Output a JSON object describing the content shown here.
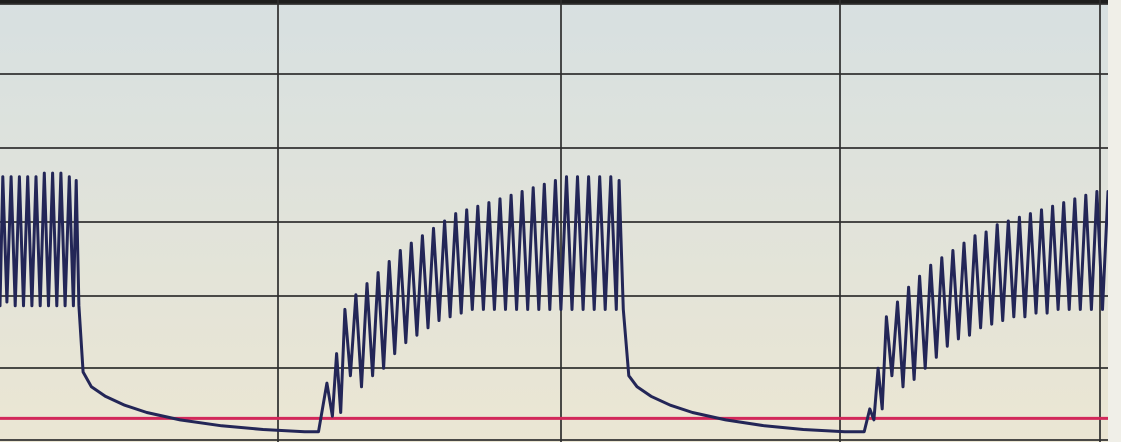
{
  "chart_data": {
    "type": "line",
    "title": "",
    "xlabel": "",
    "ylabel": "",
    "grid": true,
    "x_divisions": 4,
    "y_divisions": 6,
    "ylim": [
      0,
      6
    ],
    "xlim": [
      0,
      4
    ],
    "baseline": {
      "value": 0.32
    },
    "series": [
      {
        "values": [
          [
            0.0,
            1.85
          ],
          [
            0.01,
            3.6
          ],
          [
            0.025,
            1.9
          ],
          [
            0.04,
            3.6
          ],
          [
            0.055,
            1.85
          ],
          [
            0.07,
            3.6
          ],
          [
            0.085,
            1.85
          ],
          [
            0.1,
            3.6
          ],
          [
            0.115,
            1.85
          ],
          [
            0.13,
            3.6
          ],
          [
            0.145,
            1.85
          ],
          [
            0.16,
            3.65
          ],
          [
            0.175,
            1.85
          ],
          [
            0.19,
            3.65
          ],
          [
            0.205,
            1.85
          ],
          [
            0.22,
            3.65
          ],
          [
            0.235,
            1.85
          ],
          [
            0.25,
            3.6
          ],
          [
            0.265,
            1.85
          ],
          [
            0.275,
            3.55
          ],
          [
            0.285,
            1.85
          ],
          [
            0.3,
            0.95
          ],
          [
            0.33,
            0.75
          ],
          [
            0.38,
            0.62
          ],
          [
            0.45,
            0.5
          ],
          [
            0.53,
            0.4
          ],
          [
            0.65,
            0.3
          ],
          [
            0.8,
            0.22
          ],
          [
            0.95,
            0.17
          ],
          [
            1.1,
            0.14
          ],
          [
            1.15,
            0.14
          ],
          [
            1.18,
            0.8
          ],
          [
            1.2,
            0.35
          ],
          [
            1.215,
            1.2
          ],
          [
            1.23,
            0.4
          ],
          [
            1.245,
            1.8
          ],
          [
            1.265,
            0.9
          ],
          [
            1.285,
            2.0
          ],
          [
            1.305,
            0.75
          ],
          [
            1.325,
            2.15
          ],
          [
            1.345,
            0.9
          ],
          [
            1.365,
            2.3
          ],
          [
            1.385,
            1.0
          ],
          [
            1.405,
            2.45
          ],
          [
            1.425,
            1.2
          ],
          [
            1.445,
            2.6
          ],
          [
            1.465,
            1.35
          ],
          [
            1.485,
            2.7
          ],
          [
            1.505,
            1.45
          ],
          [
            1.525,
            2.8
          ],
          [
            1.545,
            1.55
          ],
          [
            1.565,
            2.9
          ],
          [
            1.585,
            1.65
          ],
          [
            1.605,
            3.0
          ],
          [
            1.625,
            1.7
          ],
          [
            1.645,
            3.1
          ],
          [
            1.665,
            1.75
          ],
          [
            1.685,
            3.15
          ],
          [
            1.705,
            1.8
          ],
          [
            1.725,
            3.2
          ],
          [
            1.745,
            1.8
          ],
          [
            1.765,
            3.25
          ],
          [
            1.785,
            1.8
          ],
          [
            1.805,
            3.3
          ],
          [
            1.825,
            1.8
          ],
          [
            1.845,
            3.35
          ],
          [
            1.865,
            1.8
          ],
          [
            1.885,
            3.4
          ],
          [
            1.905,
            1.8
          ],
          [
            1.925,
            3.45
          ],
          [
            1.945,
            1.8
          ],
          [
            1.965,
            3.5
          ],
          [
            1.985,
            1.8
          ],
          [
            2.005,
            3.55
          ],
          [
            2.025,
            1.8
          ],
          [
            2.045,
            3.6
          ],
          [
            2.065,
            1.8
          ],
          [
            2.085,
            3.6
          ],
          [
            2.105,
            1.8
          ],
          [
            2.125,
            3.6
          ],
          [
            2.145,
            1.8
          ],
          [
            2.165,
            3.6
          ],
          [
            2.185,
            1.8
          ],
          [
            2.205,
            3.6
          ],
          [
            2.225,
            1.8
          ],
          [
            2.235,
            3.55
          ],
          [
            2.25,
            1.8
          ],
          [
            2.27,
            0.9
          ],
          [
            2.3,
            0.75
          ],
          [
            2.35,
            0.62
          ],
          [
            2.42,
            0.5
          ],
          [
            2.5,
            0.4
          ],
          [
            2.62,
            0.3
          ],
          [
            2.76,
            0.22
          ],
          [
            2.9,
            0.17
          ],
          [
            3.05,
            0.14
          ],
          [
            3.12,
            0.14
          ],
          [
            3.14,
            0.45
          ],
          [
            3.155,
            0.3
          ],
          [
            3.17,
            1.0
          ],
          [
            3.185,
            0.45
          ],
          [
            3.2,
            1.7
          ],
          [
            3.22,
            0.9
          ],
          [
            3.24,
            1.9
          ],
          [
            3.26,
            0.75
          ],
          [
            3.28,
            2.1
          ],
          [
            3.3,
            0.85
          ],
          [
            3.32,
            2.25
          ],
          [
            3.34,
            1.0
          ],
          [
            3.36,
            2.4
          ],
          [
            3.38,
            1.15
          ],
          [
            3.4,
            2.5
          ],
          [
            3.42,
            1.3
          ],
          [
            3.44,
            2.6
          ],
          [
            3.46,
            1.4
          ],
          [
            3.48,
            2.7
          ],
          [
            3.5,
            1.45
          ],
          [
            3.52,
            2.8
          ],
          [
            3.54,
            1.55
          ],
          [
            3.56,
            2.85
          ],
          [
            3.58,
            1.6
          ],
          [
            3.6,
            2.95
          ],
          [
            3.62,
            1.65
          ],
          [
            3.64,
            3.0
          ],
          [
            3.66,
            1.7
          ],
          [
            3.68,
            3.05
          ],
          [
            3.7,
            1.7
          ],
          [
            3.72,
            3.1
          ],
          [
            3.74,
            1.75
          ],
          [
            3.76,
            3.15
          ],
          [
            3.78,
            1.75
          ],
          [
            3.8,
            3.2
          ],
          [
            3.82,
            1.8
          ],
          [
            3.84,
            3.25
          ],
          [
            3.86,
            1.8
          ],
          [
            3.88,
            3.3
          ],
          [
            3.9,
            1.8
          ],
          [
            3.92,
            3.35
          ],
          [
            3.94,
            1.8
          ],
          [
            3.96,
            3.4
          ],
          [
            3.98,
            1.8
          ],
          [
            4.0,
            3.4
          ]
        ]
      }
    ]
  },
  "colors": {
    "background_top": "#d7e0e1",
    "background_bottom": "#ebe6d3",
    "gridline": "#2e2e2e",
    "trace": "#232657",
    "baseline": "#d2285a",
    "frame": "#1e1e1e"
  }
}
